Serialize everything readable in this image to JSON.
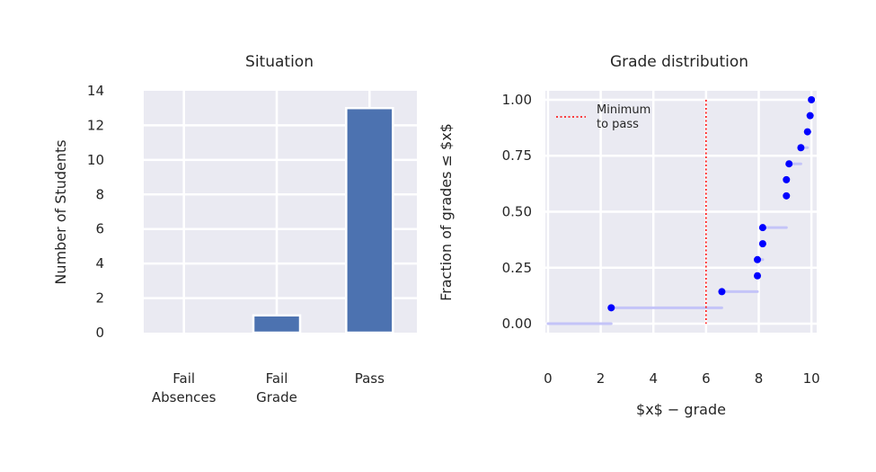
{
  "chart_data": [
    {
      "type": "bar",
      "title": "Situation",
      "xlabel": "",
      "ylabel": "Number of Students",
      "categories": [
        [
          "Fail",
          "Absences"
        ],
        [
          "Fail",
          "Grade"
        ],
        [
          "Pass"
        ]
      ],
      "values": [
        0,
        1,
        13
      ],
      "ylim": [
        0,
        14
      ],
      "yticks": [
        0,
        2,
        4,
        6,
        8,
        10,
        12,
        14
      ],
      "grid": true,
      "bar_color": "#4c72b0",
      "background_color": "#eaeaf2"
    },
    {
      "type": "scatter",
      "title": "Grade distribution",
      "xlabel": "$x$ − grade",
      "ylabel": "Fraction of grades ≤ $x$",
      "xlim": [
        -0.1,
        10.2
      ],
      "ylim": [
        -0.04,
        1.04
      ],
      "xticks": [
        0,
        2,
        4,
        6,
        8,
        10
      ],
      "yticks": [
        0,
        0.25,
        0.5,
        0.75,
        1.0
      ],
      "ytick_labels": [
        "0.00",
        "0.25",
        "0.50",
        "0.75",
        "1.00"
      ],
      "points": [
        {
          "x": 2.4,
          "y": 0.071
        },
        {
          "x": 6.6,
          "y": 0.143
        },
        {
          "x": 7.95,
          "y": 0.214
        },
        {
          "x": 7.95,
          "y": 0.286
        },
        {
          "x": 8.15,
          "y": 0.357
        },
        {
          "x": 8.15,
          "y": 0.429
        },
        {
          "x": 9.05,
          "y": 0.571
        },
        {
          "x": 9.05,
          "y": 0.643
        },
        {
          "x": 9.15,
          "y": 0.714
        },
        {
          "x": 9.6,
          "y": 0.786
        },
        {
          "x": 9.85,
          "y": 0.857
        },
        {
          "x": 9.95,
          "y": 0.929
        },
        {
          "x": 10.0,
          "y": 1.0
        }
      ],
      "steps": [
        {
          "x1": 0,
          "x2": 2.4,
          "y": 0.0
        },
        {
          "x1": 2.4,
          "x2": 6.6,
          "y": 0.071
        },
        {
          "x1": 6.6,
          "x2": 7.95,
          "y": 0.143
        },
        {
          "x1": 7.95,
          "x2": 8.15,
          "y": 0.286
        },
        {
          "x1": 8.15,
          "x2": 9.05,
          "y": 0.429
        },
        {
          "x1": 9.15,
          "x2": 9.6,
          "y": 0.714
        },
        {
          "x1": 9.6,
          "x2": 9.85,
          "y": 0.786
        },
        {
          "x1": 9.85,
          "x2": 9.95,
          "y": 0.857
        },
        {
          "x1": 9.95,
          "x2": 10.0,
          "y": 0.929
        }
      ],
      "threshold": {
        "x": 6,
        "label": [
          "Minimum",
          "to pass"
        ],
        "color": "#ff0000"
      },
      "point_color": "#0000ff",
      "step_color": "#c4c4f8",
      "grid": true,
      "legend_position": "top-left",
      "background_color": "#eaeaf2"
    }
  ]
}
